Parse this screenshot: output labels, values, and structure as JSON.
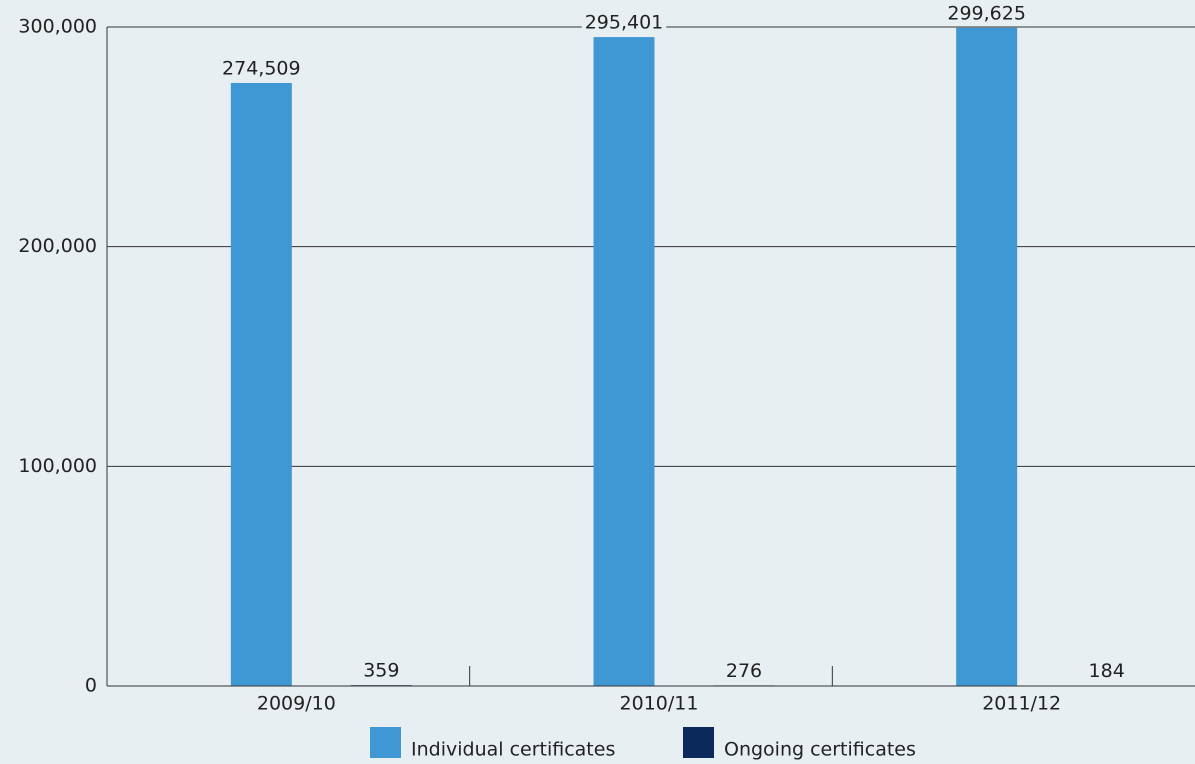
{
  "chart_data": {
    "type": "bar",
    "categories": [
      "2009/10",
      "2010/11",
      "2011/12"
    ],
    "series": [
      {
        "name": "Individual certificates",
        "color": "#3f97d4",
        "values": [
          274509,
          295401,
          299625
        ],
        "value_labels": [
          "274,509",
          "295,401",
          "299,625"
        ]
      },
      {
        "name": "Ongoing certificates",
        "color": "#0b2a5b",
        "values": [
          359,
          276,
          184
        ]
      }
    ],
    "ylim": [
      0,
      300000
    ],
    "yticks": [
      0,
      {
        "value": 100000,
        "label": "100,000"
      },
      {
        "value": 200000,
        "label": "200,000"
      },
      {
        "value": 300000,
        "label": "300,000"
      }
    ],
    "grid": true,
    "legend": "bottom"
  }
}
